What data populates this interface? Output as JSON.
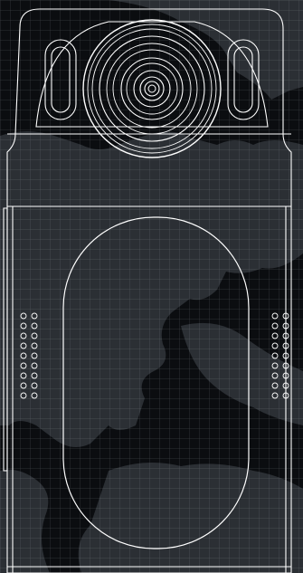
{
  "scene": {
    "device": "body-camera",
    "background": "world-map-grid",
    "colors": {
      "background": "#0b0d10",
      "map_land": "#2b2f34",
      "grid_line": "#aeb6bf",
      "outline": "#ffffff"
    },
    "parts": {
      "left_ir_sensor": "ir-sensor-left",
      "right_ir_sensor": "ir-sensor-right",
      "camera_lens": "camera-lens",
      "display_window": "display-window",
      "left_speaker_grille": "speaker-grille-left",
      "right_speaker_grille": "speaker-grille-right"
    },
    "grille_holes_per_column": 9
  }
}
